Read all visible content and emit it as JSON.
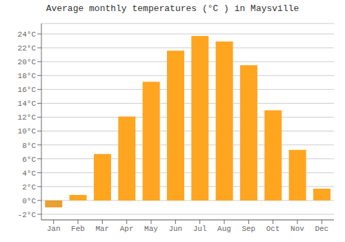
{
  "chart_data": {
    "type": "bar",
    "title": "Average monthly temperatures (°C ) in Maysville",
    "categories": [
      "Jan",
      "Feb",
      "Mar",
      "Apr",
      "May",
      "Jun",
      "Jul",
      "Aug",
      "Sep",
      "Oct",
      "Nov",
      "Dec"
    ],
    "values": [
      -1.0,
      0.8,
      6.7,
      12.1,
      17.1,
      21.6,
      23.7,
      22.9,
      19.5,
      13.0,
      7.3,
      1.7
    ],
    "colors": [
      "#E8A030",
      "#FFA520",
      "#FFA520",
      "#FFA520",
      "#FFA520",
      "#FFA520",
      "#FFA520",
      "#FFA520",
      "#FFA520",
      "#FFA520",
      "#FFA520",
      "#FFA520"
    ],
    "ylim": [
      -2.8,
      25.5
    ],
    "yticks": [
      {
        "value": -2,
        "label": "-2°C"
      },
      {
        "value": 0,
        "label": "0°C"
      },
      {
        "value": 2,
        "label": "2°C"
      },
      {
        "value": 4,
        "label": "4°C"
      },
      {
        "value": 6,
        "label": "6°C"
      },
      {
        "value": 8,
        "label": "8°C"
      },
      {
        "value": 10,
        "label": "10°C"
      },
      {
        "value": 12,
        "label": "12°C"
      },
      {
        "value": 14,
        "label": "14°C"
      },
      {
        "value": 16,
        "label": "16°C"
      },
      {
        "value": 18,
        "label": "18°C"
      },
      {
        "value": 20,
        "label": "20°C"
      },
      {
        "value": 22,
        "label": "22°C"
      },
      {
        "value": 24,
        "label": "24°C"
      }
    ],
    "grid": true
  }
}
